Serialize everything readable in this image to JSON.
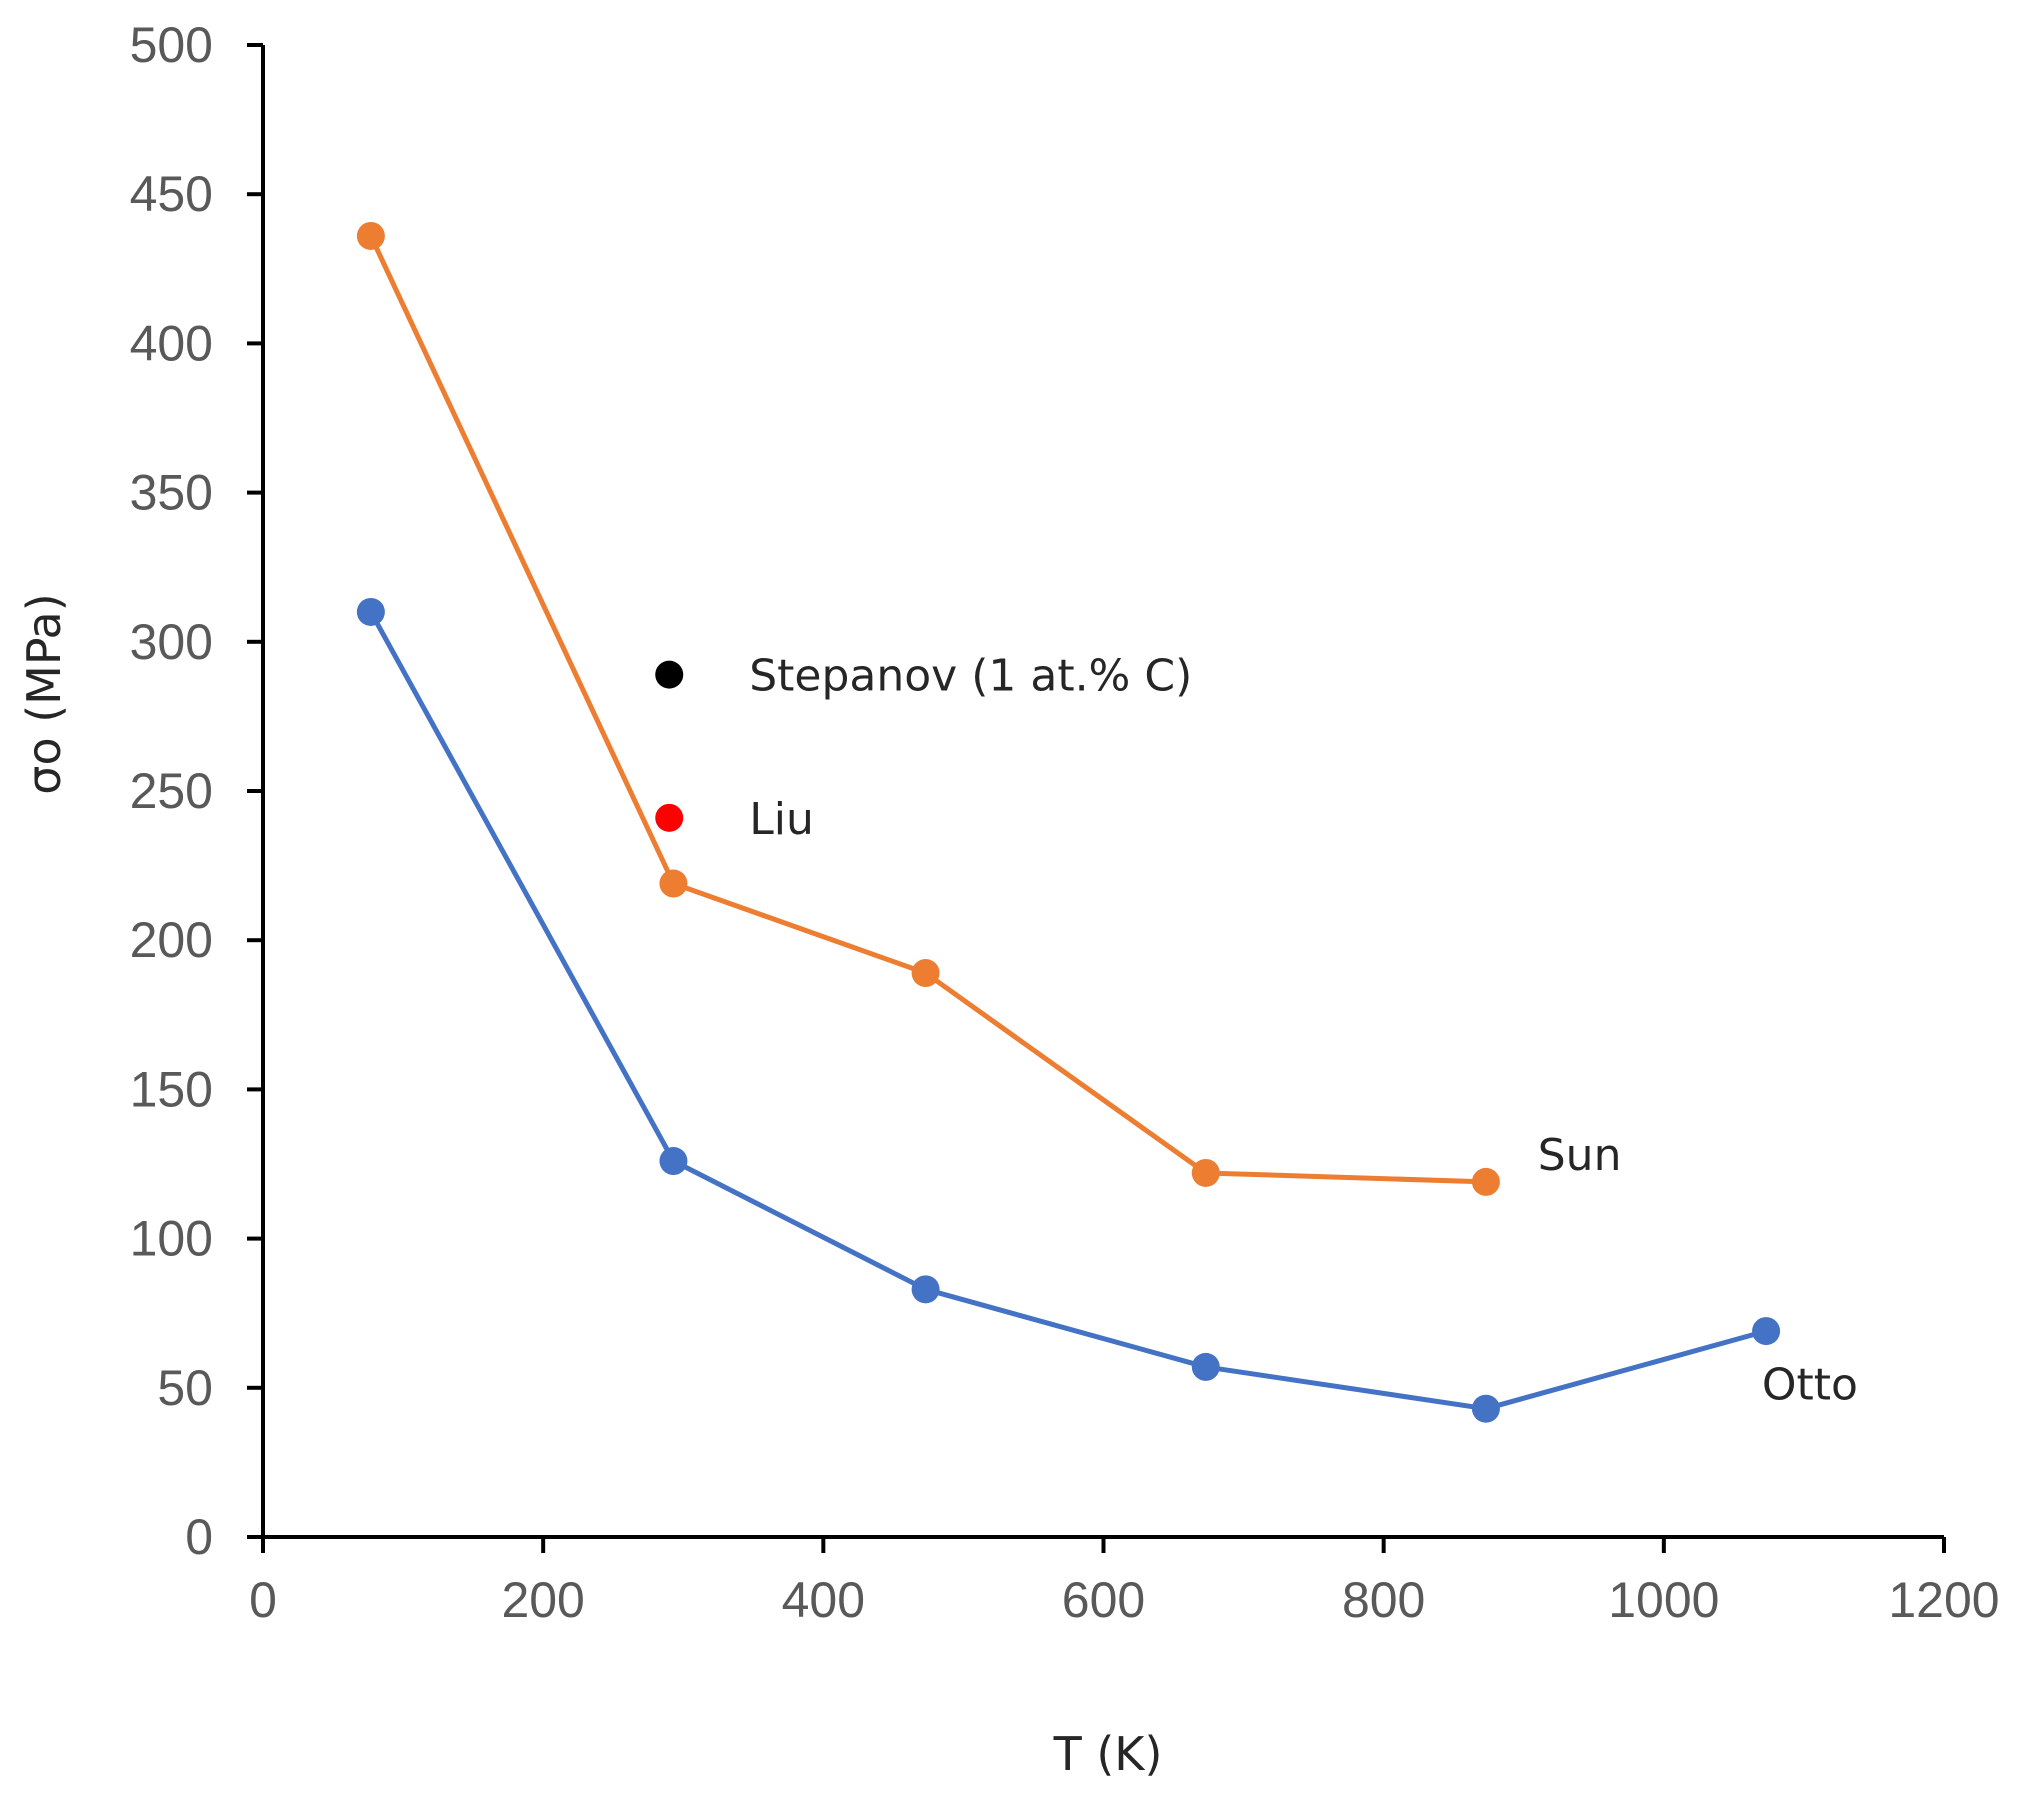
{
  "chart_data": {
    "type": "line",
    "title": "",
    "xlabel": "T (K)",
    "ylabel": "σo (MPa)",
    "xlim": [
      0,
      1200
    ],
    "ylim": [
      0,
      500
    ],
    "xticks": [
      0,
      200,
      400,
      600,
      800,
      1000,
      1200
    ],
    "yticks": [
      0,
      50,
      100,
      150,
      200,
      250,
      300,
      350,
      400,
      450,
      500
    ],
    "grid": false,
    "series": [
      {
        "name": "Sun",
        "color": "#ED7D31",
        "x": [
          77,
          293,
          473,
          673,
          873
        ],
        "y": [
          436,
          219,
          189,
          122,
          119
        ],
        "label_text": "Sun",
        "label_anchor": [
          910,
          123
        ]
      },
      {
        "name": "Otto",
        "color": "#4472C4",
        "x": [
          77,
          293,
          473,
          673,
          873,
          1073
        ],
        "y": [
          310,
          126,
          83,
          57,
          43,
          69
        ],
        "label_text": "Otto",
        "label_anchor": [
          1070,
          46
        ]
      }
    ],
    "points": [
      {
        "name": "Stepanov (1 at.% C)",
        "x": 290,
        "y": 289,
        "color": "#000000"
      },
      {
        "name": "Liu",
        "x": 290,
        "y": 241,
        "color": "#FF0000"
      }
    ]
  }
}
